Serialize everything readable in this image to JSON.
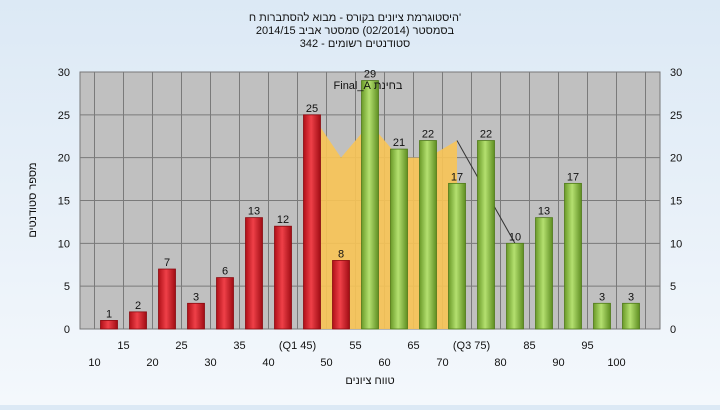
{
  "chart_data": {
    "type": "bar",
    "title_lines": [
      "'היסטוגרמת ציונים בקורס - מבוא להסתברות ח",
      "בסמסטר  (02/2014)  סמסטר אביב 2014/15",
      "סטודנטים רשומים - 342"
    ],
    "xlabel": "טווח ציונים",
    "ylabel": "מספר סטודנטים",
    "ylim": [
      0,
      30
    ],
    "yticks": [
      0,
      5,
      10,
      15,
      20,
      25,
      30
    ],
    "grid": true,
    "categories": [
      "10",
      "15",
      "20",
      "25",
      "30",
      "35",
      "40",
      "(Q1 45)",
      "50",
      "55",
      "60",
      "65",
      "70",
      "(Q3 75)",
      "80",
      "85",
      "90",
      "95",
      "100"
    ],
    "values": [
      1,
      2,
      7,
      3,
      6,
      13,
      12,
      25,
      8,
      29,
      21,
      22,
      17,
      22,
      10,
      13,
      17,
      3,
      3
    ],
    "bar_groups": [
      "red",
      "red",
      "red",
      "red",
      "red",
      "red",
      "red",
      "red",
      "red",
      "green",
      "green",
      "green",
      "green",
      "green",
      "green",
      "green",
      "green",
      "green",
      "green"
    ],
    "area_series": {
      "name": "בחינת Final_A",
      "range": [
        7,
        13
      ],
      "values": [
        25,
        20,
        24,
        20,
        20,
        22
      ]
    },
    "colors": {
      "red_bar": "#e0202a",
      "green_bar": "#8cc43c",
      "area": "#f8c455",
      "plot_bg": "#c0c0c0"
    }
  }
}
